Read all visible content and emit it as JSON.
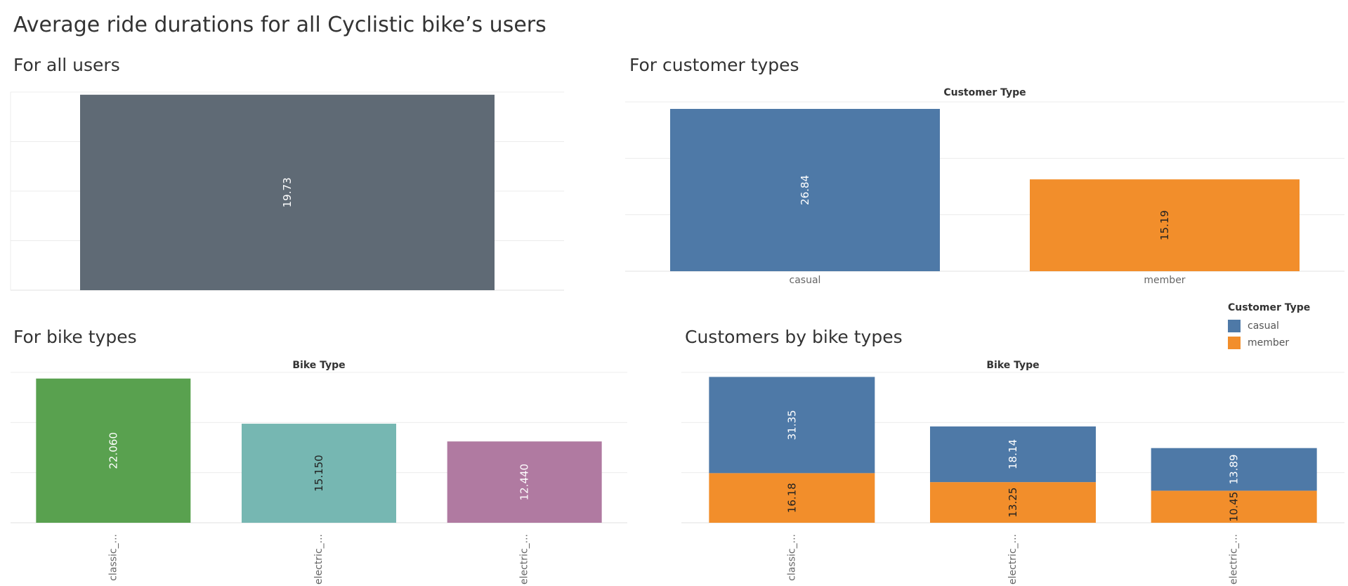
{
  "dashboard_title": "Average ride durations for all Cyclistic bike’s users",
  "panels": {
    "all_users": {
      "title": "For all users"
    },
    "customer_types": {
      "title": "For customer types",
      "header": "Customer Type"
    },
    "bike_types": {
      "title": "For bike types",
      "header": "Bike Type"
    },
    "customers_by_bike": {
      "title": "Customers by bike types",
      "header": "Bike Type"
    }
  },
  "legend": {
    "title": "Customer Type",
    "items": [
      {
        "label": "casual",
        "color": "#4e79a7"
      },
      {
        "label": "member",
        "color": "#f28e2b"
      }
    ]
  },
  "chart_data": [
    {
      "type": "bar",
      "title": "For all users",
      "categories": [
        ""
      ],
      "values": [
        19.73
      ],
      "value_labels": [
        "19.73"
      ],
      "colors": [
        "#5f6a75"
      ],
      "ylim": [
        0,
        20
      ],
      "grid": true
    },
    {
      "type": "bar",
      "title": "For customer types",
      "header": "Customer Type",
      "categories": [
        "casual",
        "member"
      ],
      "values": [
        26.84,
        15.19
      ],
      "value_labels": [
        "26.84",
        "15.19"
      ],
      "colors": [
        "#4e79a7",
        "#f28e2b"
      ],
      "ylim": [
        0,
        28
      ],
      "grid": true
    },
    {
      "type": "bar",
      "title": "For bike types",
      "header": "Bike Type",
      "categories": [
        "classic_...",
        "electric_...",
        "electric_..."
      ],
      "values": [
        22.06,
        15.15,
        12.44
      ],
      "value_labels": [
        "22.060",
        "15.150",
        "12.440"
      ],
      "colors": [
        "#59a14f",
        "#76b7b2",
        "#b07aa1"
      ],
      "ylim": [
        0,
        23
      ],
      "grid": true
    },
    {
      "type": "bar",
      "stacked": true,
      "title": "Customers by bike types",
      "header": "Bike Type",
      "categories": [
        "classic_...",
        "electric_...",
        "electric_..."
      ],
      "series": [
        {
          "name": "member",
          "values": [
            16.18,
            13.25,
            10.45
          ],
          "labels": [
            "16.18",
            "13.25",
            "10.45"
          ],
          "color": "#f28e2b"
        },
        {
          "name": "casual",
          "values": [
            31.35,
            18.14,
            13.89
          ],
          "labels": [
            "31.35",
            "18.14",
            "13.89"
          ],
          "color": "#4e79a7"
        }
      ],
      "ylim": [
        0,
        49
      ],
      "grid": true,
      "legend": "top-right"
    }
  ]
}
